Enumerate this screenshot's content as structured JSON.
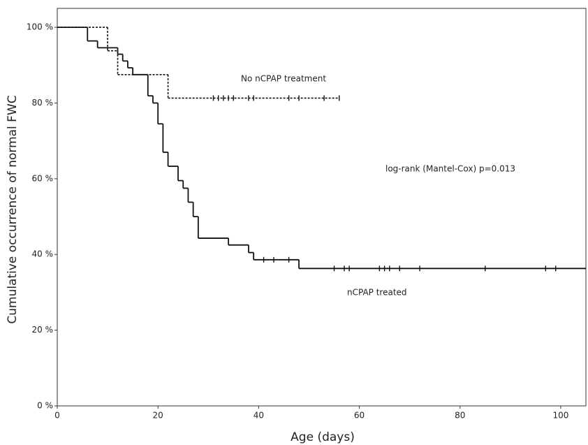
{
  "chart_data": {
    "type": "step",
    "xlabel": "Age (days)",
    "ylabel": "Cumulative occurrence of normal FWC",
    "xlim": [
      0,
      105
    ],
    "xticks": [
      0,
      20,
      40,
      60,
      80,
      100
    ],
    "ylim": [
      0,
      105
    ],
    "yticks": [
      {
        "value": 0,
        "label": "0 %"
      },
      {
        "value": 20,
        "label": "20 %"
      },
      {
        "value": 40,
        "label": "40 %"
      },
      {
        "value": 60,
        "label": "60 %"
      },
      {
        "value": 80,
        "label": "80 %"
      },
      {
        "value": 100,
        "label": "100 %"
      }
    ],
    "annotations": [
      "No nCPAP treatment",
      "log-rank (Mantel-Cox) p=0.013",
      "nCPAP treated"
    ],
    "series": [
      {
        "name": "nCPAP treated",
        "color": "#111111",
        "dash": "solid",
        "x": [
          0,
          6,
          8,
          12,
          13,
          14,
          15,
          18,
          19,
          20,
          21,
          22,
          24,
          25,
          26,
          27,
          28,
          34,
          38,
          39,
          48,
          105
        ],
        "values": [
          100,
          96.4,
          94.6,
          92.9,
          91.1,
          89.3,
          87.5,
          81.9,
          80,
          74.5,
          67,
          63.3,
          59.5,
          57.5,
          53.8,
          50,
          44.3,
          42.5,
          40.5,
          38.6,
          36.3,
          36.3
        ],
        "censored": [
          41,
          43,
          46,
          55,
          57,
          58,
          64,
          65,
          66,
          68,
          72,
          85,
          97,
          99
        ]
      },
      {
        "name": "No nCPAP treatment",
        "color": "#111111",
        "dash": "dotted",
        "x": [
          0,
          10,
          12,
          22,
          56
        ],
        "values": [
          100,
          93.8,
          87.5,
          81.3,
          81.3
        ],
        "censored": [
          31,
          32,
          33,
          34,
          35,
          38,
          39,
          46,
          48,
          53,
          56
        ]
      }
    ]
  }
}
